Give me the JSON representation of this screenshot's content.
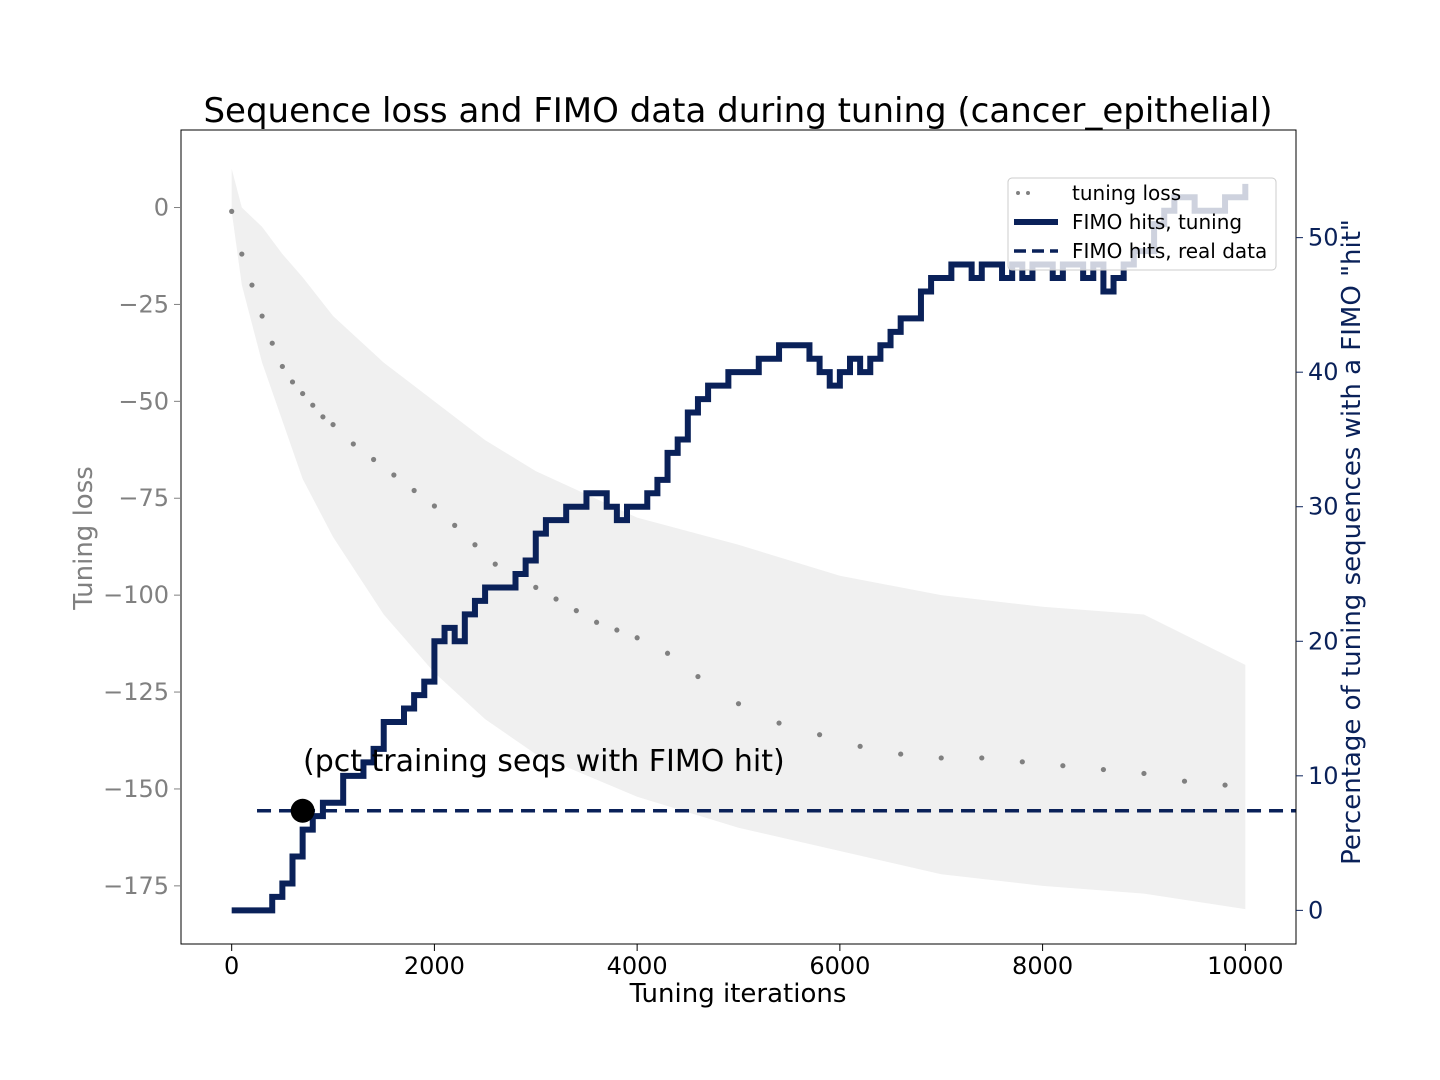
{
  "chart_data": {
    "type": "line",
    "title": "Sequence loss and FIMO data during tuning (cancer_epithelial)",
    "xlabel": "Tuning iterations",
    "ylabel_left": "Tuning loss",
    "ylabel_right": "Percentage of tuning sequences with a FIMO \"hit\"",
    "xlim": [
      -500,
      10500
    ],
    "ylim_left": [
      -190,
      20
    ],
    "ylim_right": [
      -2.5,
      58
    ],
    "x_ticks": [
      0,
      2000,
      4000,
      6000,
      8000,
      10000
    ],
    "x_tick_labels": [
      "0",
      "2000",
      "4000",
      "6000",
      "8000",
      "10000"
    ],
    "y_left_ticks": [
      0,
      -25,
      -50,
      -75,
      -100,
      -125,
      -150,
      -175
    ],
    "y_left_tick_labels": [
      "0",
      "−25",
      "−50",
      "−75",
      "−100",
      "−125",
      "−150",
      "−175"
    ],
    "y_right_ticks": [
      0,
      10,
      20,
      30,
      40,
      50
    ],
    "y_right_tick_labels": [
      "0",
      "10",
      "20",
      "30",
      "40",
      "50"
    ],
    "grid": false,
    "legend_position": "top-right",
    "legend": [
      {
        "label": "tuning loss",
        "style": "dotted-marker"
      },
      {
        "label": "FIMO hits, tuning",
        "style": "solid"
      },
      {
        "label": "FIMO hits, real data",
        "style": "dashed"
      }
    ],
    "colors": {
      "loss": "#808080",
      "band": "#f0f0f0",
      "fimo": "#0a2159",
      "left_axis": "#808080",
      "right_axis": "#0a2159"
    },
    "series": [
      {
        "name": "tuning loss",
        "axis": "left",
        "style": "dotted",
        "x": [
          0,
          100,
          200,
          300,
          400,
          500,
          600,
          700,
          800,
          900,
          1000,
          1200,
          1400,
          1600,
          1800,
          2000,
          2200,
          2400,
          2600,
          2800,
          3000,
          3200,
          3400,
          3600,
          3800,
          4000,
          4300,
          4600,
          5000,
          5400,
          5800,
          6200,
          6600,
          7000,
          7400,
          7800,
          8200,
          8600,
          9000,
          9400,
          9800
        ],
        "y": [
          -1,
          -12,
          -20,
          -28,
          -35,
          -41,
          -45,
          -48,
          -51,
          -54,
          -56,
          -61,
          -65,
          -69,
          -73,
          -77,
          -82,
          -87,
          -92,
          -95,
          -98,
          -101,
          -104,
          -107,
          -109,
          -111,
          -115,
          -121,
          -128,
          -133,
          -136,
          -139,
          -141,
          -142,
          -142,
          -143,
          -144,
          -145,
          -146,
          -148,
          -149
        ]
      },
      {
        "name": "FIMO hits, tuning",
        "axis": "right",
        "style": "solid",
        "x": [
          0,
          200,
          400,
          500,
          600,
          700,
          800,
          900,
          1000,
          1100,
          1200,
          1300,
          1400,
          1500,
          1600,
          1700,
          1800,
          1900,
          2000,
          2100,
          2200,
          2300,
          2400,
          2500,
          2600,
          2700,
          2800,
          2900,
          3000,
          3100,
          3200,
          3300,
          3400,
          3500,
          3600,
          3700,
          3800,
          3900,
          4000,
          4100,
          4200,
          4300,
          4400,
          4500,
          4600,
          4700,
          4800,
          4900,
          5000,
          5100,
          5200,
          5300,
          5400,
          5500,
          5600,
          5700,
          5800,
          5900,
          6000,
          6100,
          6200,
          6300,
          6400,
          6500,
          6600,
          6700,
          6800,
          6900,
          7000,
          7100,
          7200,
          7300,
          7400,
          7500,
          7600,
          7700,
          7800,
          7900,
          8000,
          8100,
          8200,
          8300,
          8400,
          8500,
          8600,
          8700,
          8800,
          8900,
          9000,
          9100,
          9200,
          9300,
          9400,
          9500,
          9600,
          9700,
          9800,
          9900,
          10000
        ],
        "y": [
          0,
          0,
          1,
          2,
          4,
          6,
          7,
          8,
          8,
          10,
          10,
          11,
          12,
          14,
          14,
          15,
          16,
          17,
          20,
          21,
          20,
          22,
          23,
          24,
          24,
          24,
          25,
          26,
          28,
          29,
          29,
          30,
          30,
          31,
          31,
          30,
          29,
          30,
          30,
          31,
          32,
          34,
          35,
          37,
          38,
          39,
          39,
          40,
          40,
          40,
          41,
          41,
          42,
          42,
          42,
          41,
          40,
          39,
          40,
          41,
          40,
          41,
          42,
          43,
          44,
          44,
          46,
          47,
          47,
          48,
          48,
          47,
          48,
          48,
          47,
          48,
          47,
          48,
          48,
          47,
          48,
          48,
          47,
          48,
          46,
          47,
          48,
          49,
          49,
          51,
          52,
          53,
          53,
          52,
          52,
          52,
          53,
          53,
          54
        ]
      },
      {
        "name": "FIMO hits, real data",
        "axis": "right",
        "style": "dashed",
        "x": [
          250,
          10500
        ],
        "y": [
          7.4,
          7.4
        ]
      }
    ],
    "band": {
      "axis": "left",
      "x": [
        0,
        100,
        300,
        500,
        700,
        1000,
        1500,
        2000,
        2500,
        3000,
        4000,
        5000,
        6000,
        7000,
        8000,
        9000,
        10000
      ],
      "upper": [
        10,
        0,
        -5,
        -12,
        -18,
        -28,
        -40,
        -50,
        -60,
        -68,
        -80,
        -87,
        -95,
        -100,
        -103,
        -105,
        -118
      ],
      "lower": [
        -1,
        -20,
        -40,
        -55,
        -70,
        -85,
        -105,
        -120,
        -132,
        -141,
        -152,
        -160,
        -166,
        -172,
        -175,
        -177,
        -181
      ]
    },
    "marker": {
      "x": 700,
      "y_right": 7.4
    },
    "annotation": "(pct training seqs with FIMO hit)"
  }
}
